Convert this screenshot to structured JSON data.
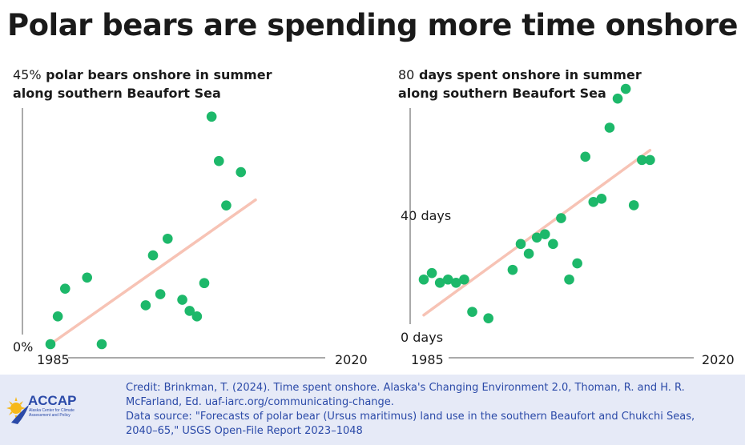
{
  "title": "Polar bears are spending more time onshore",
  "chart_data": [
    {
      "type": "scatter",
      "ylabel_value": "45%",
      "ylabel_line1": "polar bears onshore in summer",
      "ylabel_line2": "along southern Beaufort Sea",
      "y_min_label": "0%",
      "x_start_label": "1985",
      "x_end_label": "2020",
      "xlim": [
        1985,
        2020
      ],
      "ylim": [
        0,
        45
      ],
      "trend": {
        "x": [
          1985,
          2013
        ],
        "y": [
          0,
          26
        ]
      },
      "x": [
        1985,
        1986,
        1987,
        1990,
        1992,
        1998,
        1999,
        2000,
        2001,
        2003,
        2004,
        2005,
        2006,
        2007,
        2008,
        2009,
        2011
      ],
      "y": [
        0,
        5,
        10,
        12,
        0,
        7,
        16,
        9,
        19,
        8,
        6,
        5,
        11,
        41,
        33,
        25,
        31
      ]
    },
    {
      "type": "scatter",
      "ylabel_value": "80",
      "ylabel_line1": "days spent onshore in summer",
      "ylabel_line2": "along southern Beaufort Sea",
      "y_mid_label": "40 days",
      "y_min_label": "0 days",
      "x_start_label": "1985",
      "x_end_label": "2020",
      "xlim": [
        1985,
        2020
      ],
      "ylim": [
        0,
        80
      ],
      "trend": {
        "x": [
          1985,
          2013
        ],
        "y": [
          9,
          60
        ]
      },
      "x": [
        1985,
        1986,
        1987,
        1988,
        1989,
        1990,
        1991,
        1993,
        1996,
        1997,
        1998,
        1999,
        2000,
        2001,
        2002,
        2003,
        2004,
        2005,
        2006,
        2007,
        2008,
        2009,
        2010,
        2011,
        2012,
        2013
      ],
      "y": [
        20,
        22,
        19,
        20,
        19,
        20,
        10,
        8,
        23,
        31,
        28,
        33,
        34,
        31,
        39,
        20,
        25,
        58,
        44,
        45,
        67,
        76,
        79,
        43,
        57,
        57
      ]
    }
  ],
  "footer": {
    "credit_line1": "Credit: Brinkman, T. (2024). Time spent onshore. Alaska's Changing Environment 2.0, Thoman, R. and H. R.",
    "credit_line2": "McFarland, Ed. uaf-iarc.org/communicating-change.",
    "source_line1": "Data source: \"Forecasts of polar bear (Ursus maritimus) land use in the southern Beaufort and Chukchi Seas,",
    "source_line2": "2040–65,\" USGS Open-File Report 2023–1048",
    "logo_text": "ACCAP",
    "logo_sub1": "Alaska Center for Climate",
    "logo_sub2": "Assessment and Policy"
  },
  "colors": {
    "dot": "#1db86a",
    "trend": "#f7c3b5",
    "axis": "#555555",
    "footer_bg": "#e6eaf7",
    "footer_text": "#2b4aa8",
    "logo_blue": "#2b4aa8",
    "logo_sun": "#f6b81a"
  }
}
